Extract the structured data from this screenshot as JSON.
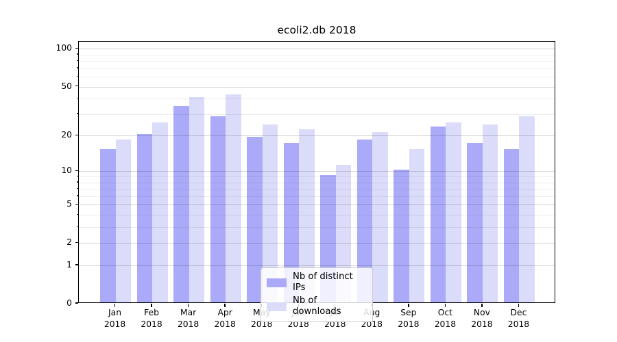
{
  "chart_data": {
    "type": "bar",
    "title": "ecoli2.db 2018",
    "categories": [
      "Jan",
      "Feb",
      "Mar",
      "Apr",
      "May",
      "Jun",
      "Jul",
      "Aug",
      "Sep",
      "Oct",
      "Nov",
      "Dec"
    ],
    "x_sublabel": "2018",
    "series": [
      {
        "name": "Nb of distinct IPs",
        "color": "#aaaaf8",
        "values": [
          15,
          20,
          34,
          28,
          19,
          17,
          9,
          18,
          10,
          23,
          17,
          15
        ]
      },
      {
        "name": "Nb of downloads",
        "color": "#dbdbfa",
        "values": [
          18,
          25,
          40,
          42,
          24,
          22,
          11,
          21,
          15,
          25,
          24,
          28
        ]
      }
    ],
    "xlabel": "",
    "ylabel": "",
    "y_scale": "log1p",
    "ylim": [
      0,
      114
    ],
    "yticks": [
      0,
      1,
      2,
      5,
      10,
      20,
      50,
      100
    ],
    "minor_yticks": [
      3,
      4,
      6,
      7,
      8,
      9,
      30,
      40,
      60,
      70,
      80,
      90
    ],
    "grid": "horizontal major and minor",
    "legend_position": "inside bottom-center"
  }
}
